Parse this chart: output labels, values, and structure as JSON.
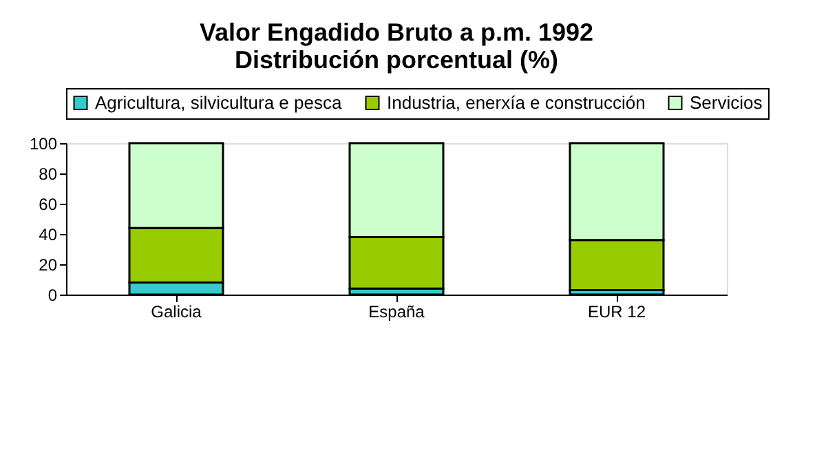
{
  "chart_data": {
    "type": "bar",
    "title": [
      "Valor Engadido Bruto a p.m.  1992",
      "Distribución porcentual (%)"
    ],
    "stacked": true,
    "categories": [
      "Galicia",
      "España",
      "EUR 12"
    ],
    "series": [
      {
        "name": "Agricultura, silvicultura e pesca",
        "color": "#33cccc",
        "values": [
          8,
          4,
          3
        ]
      },
      {
        "name": "Industria, enerxía e construcción",
        "color": "#99cc00",
        "values": [
          36,
          34,
          33
        ]
      },
      {
        "name": "Servicios",
        "color": "#ccffcc",
        "values": [
          56,
          62,
          64
        ]
      }
    ],
    "ylim": [
      0,
      100
    ],
    "yticks": [
      0,
      20,
      40,
      60,
      80,
      100
    ],
    "grid": false,
    "legend": "top"
  }
}
